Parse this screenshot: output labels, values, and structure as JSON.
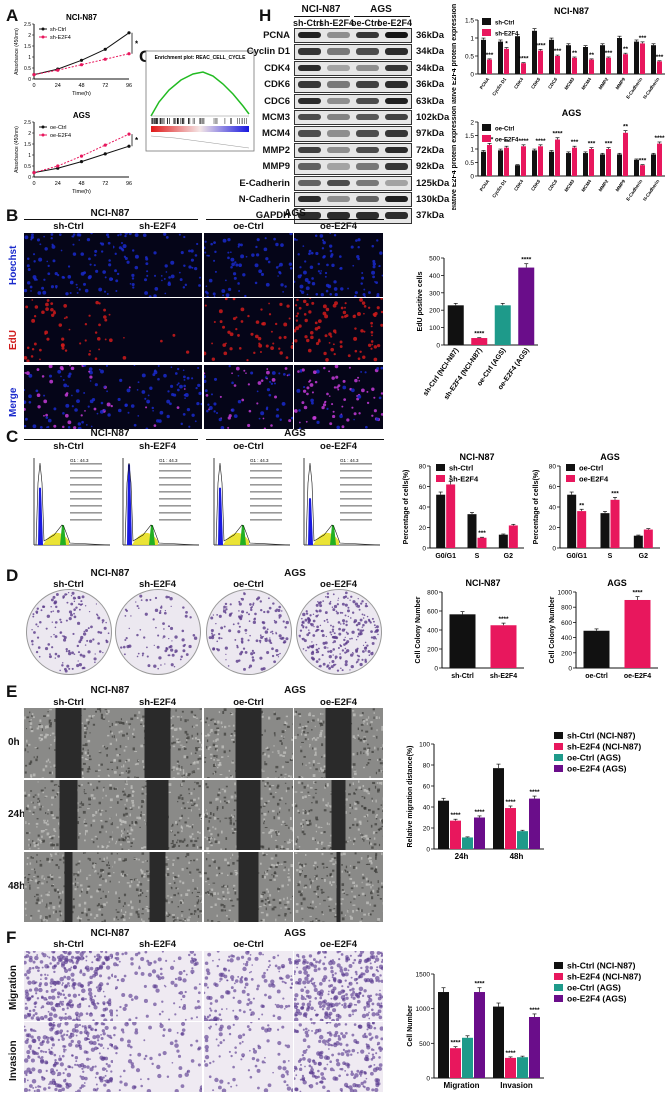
{
  "panels": {
    "A": "A",
    "B": "B",
    "C": "C",
    "D": "D",
    "E": "E",
    "F": "F",
    "G": "G",
    "H": "H"
  },
  "colors": {
    "black": "#111111",
    "pink": "#e8175d",
    "teal": "#1e9a8a",
    "purple": "#6a0d8a",
    "blue": "#1a2acc",
    "red": "#d01b1b",
    "magenta": "#c43bd8"
  },
  "groups": {
    "nci": "NCI-N87",
    "ags": "AGS",
    "sh_ctrl": "sh-Ctrl",
    "sh_e2f4": "sh-E2F4",
    "oe_ctrl": "oe-Ctrl",
    "oe_e2f4": "oe-E2F4"
  },
  "panelA": {
    "top": {
      "title": "NCI-N87",
      "legend": [
        "sh-Ctrl",
        "sh-E2F4"
      ],
      "ylabel": "Absorbance (450nm)",
      "xlabel": "Time(h)",
      "sig": "****"
    },
    "bottom": {
      "title": "AGS",
      "legend": [
        "oe-Ctrl",
        "oe-E2F4"
      ],
      "ylabel": "Absorbance (450nm)",
      "xlabel": "Time(h)",
      "sig": "****"
    },
    "chart_data": [
      {
        "type": "line",
        "title": "NCI-N87",
        "x": [
          0,
          24,
          48,
          72,
          96
        ],
        "xlabel": "Time(h)",
        "ylabel": "Absorbance (450nm)",
        "ylim": [
          0,
          2.5
        ],
        "series": [
          {
            "name": "sh-Ctrl",
            "values": [
              0.2,
              0.45,
              0.85,
              1.35,
              2.1
            ]
          },
          {
            "name": "sh-E2F4",
            "values": [
              0.2,
              0.4,
              0.65,
              0.9,
              1.15
            ]
          }
        ]
      },
      {
        "type": "line",
        "title": "AGS",
        "x": [
          0,
          24,
          48,
          72,
          96
        ],
        "xlabel": "Time(h)",
        "ylabel": "Absorbance (450nm)",
        "ylim": [
          0,
          2.5
        ],
        "series": [
          {
            "name": "oe-Ctrl",
            "values": [
              0.2,
              0.4,
              0.7,
              1.05,
              1.4
            ]
          },
          {
            "name": "oe-E2F4",
            "values": [
              0.2,
              0.5,
              0.95,
              1.45,
              1.95
            ]
          }
        ]
      }
    ]
  },
  "panelG": {
    "title": "Enrichment plot: REAC_CELL_CYCLE"
  },
  "panelH": {
    "proteins": [
      "PCNA",
      "Cyclin D1",
      "CDK4",
      "CDK6",
      "CDC6",
      "MCM3",
      "MCM4",
      "MMP2",
      "MMP9",
      "E-Cadherin",
      "N-Cadherin",
      "GAPDH"
    ],
    "kda": [
      "36kDa",
      "34kDa",
      "34kDa",
      "36kDa",
      "63kDa",
      "102kDa",
      "97kDa",
      "72kDa",
      "92kDa",
      "125kDa",
      "130kDa",
      "37kDa"
    ],
    "lanes": [
      "sh-Ctrl",
      "sh-E2F4",
      "oe-Ctrl",
      "oe-E2F4"
    ],
    "chart_data": [
      {
        "type": "bar",
        "title": "NCI-N87",
        "ylabel": "The relative E2F4 protein expression to GAPDH",
        "ylim": [
          0,
          1.5
        ],
        "categories": [
          "PCNA",
          "Cyclin D1",
          "CDK4",
          "CDK6",
          "CDC6",
          "MCM3",
          "MCM4",
          "MMP2",
          "MMP9",
          "E-Cadherin",
          "N-Cadherin"
        ],
        "series": [
          {
            "name": "sh-Ctrl",
            "values": [
              0.95,
              0.9,
              1.05,
              1.2,
              0.95,
              0.8,
              0.75,
              0.8,
              1.0,
              0.9,
              0.8
            ]
          },
          {
            "name": "sh-E2F4",
            "values": [
              0.4,
              0.7,
              0.3,
              0.65,
              0.5,
              0.45,
              0.4,
              0.45,
              0.55,
              0.85,
              0.35
            ]
          }
        ],
        "sig": [
          "***",
          "*",
          "****",
          "****",
          "***",
          "**",
          "**",
          "***",
          "**",
          "***",
          "***"
        ]
      },
      {
        "type": "bar",
        "title": "AGS",
        "ylabel": "The relative E2F4 protein expression to GAPDH",
        "ylim": [
          0,
          2.0
        ],
        "categories": [
          "PCNA",
          "Cyclin D1",
          "CDK4",
          "CDK6",
          "CDC6",
          "MCM3",
          "MCM4",
          "MMP2",
          "MMP9",
          "E-Cadherin",
          "N-Cadherin"
        ],
        "series": [
          {
            "name": "oe-Ctrl",
            "values": [
              0.9,
              0.95,
              0.4,
              0.95,
              0.9,
              0.85,
              0.85,
              0.8,
              0.8,
              0.6,
              0.8
            ]
          },
          {
            "name": "oe-E2F4",
            "values": [
              1.15,
              1.05,
              1.1,
              1.1,
              1.35,
              1.05,
              1.0,
              1.0,
              1.6,
              0.4,
              1.2
            ]
          }
        ],
        "sig": [
          "***",
          "**",
          "****",
          "****",
          "****",
          "***",
          "***",
          "***",
          "**",
          "***",
          "****"
        ]
      }
    ]
  },
  "panelB": {
    "rows": [
      "Hoechst",
      "EdU",
      "Merge"
    ],
    "chart_data": {
      "type": "bar",
      "ylabel": "EdU positive cells",
      "ylim": [
        0,
        500
      ],
      "categories": [
        "sh-Ctrl (NCI-N87)",
        "sh-E2F4 (NCI-N87)",
        "oe-Ctrl (AGS)",
        "oe-E2F4 (AGS)"
      ],
      "values": [
        228,
        40,
        228,
        445
      ],
      "sig": [
        "",
        "****",
        "",
        "****"
      ]
    }
  },
  "panelC": {
    "flow_text": "G1 : 44.3",
    "chart_data": [
      {
        "type": "bar",
        "title": "NCI-N87",
        "ylabel": "Percentage of cells(%)",
        "ylim": [
          0,
          80
        ],
        "categories": [
          "G0/G1",
          "S",
          "G2"
        ],
        "series": [
          {
            "name": "sh-Ctrl",
            "values": [
              52,
              33,
              13
            ]
          },
          {
            "name": "sh-E2F4",
            "values": [
              62,
              10,
              22
            ]
          }
        ],
        "sig": [
          "*",
          "***",
          ""
        ]
      },
      {
        "type": "bar",
        "title": "AGS",
        "ylabel": "Percentage of cells(%)",
        "ylim": [
          0,
          80
        ],
        "categories": [
          "G0/G1",
          "S",
          "G2"
        ],
        "series": [
          {
            "name": "oe-Ctrl",
            "values": [
              52,
              34,
              12
            ]
          },
          {
            "name": "oe-E2F4",
            "values": [
              36,
              47,
              18
            ]
          }
        ],
        "sig": [
          "**",
          "***",
          ""
        ]
      }
    ]
  },
  "panelD": {
    "chart_data": [
      {
        "type": "bar",
        "title": "NCI-N87",
        "ylabel": "Cell Colony Number",
        "ylim": [
          0,
          800
        ],
        "categories": [
          "sh-Ctrl",
          "sh-E2F4"
        ],
        "values": [
          565,
          450
        ],
        "sig": [
          "",
          "****"
        ]
      },
      {
        "type": "bar",
        "title": "AGS",
        "ylabel": "Cell Colony Number",
        "ylim": [
          0,
          1000
        ],
        "categories": [
          "oe-Ctrl",
          "oe-E2F4"
        ],
        "values": [
          490,
          895
        ],
        "sig": [
          "",
          "****"
        ]
      }
    ]
  },
  "panelE": {
    "rows": [
      "0h",
      "24h",
      "48h"
    ],
    "chart_data": {
      "type": "bar",
      "ylabel": "Relative migration distance(%)",
      "ylim": [
        0,
        100
      ],
      "categories": [
        "24h",
        "48h"
      ],
      "series": [
        {
          "name": "sh-Ctrl (NCI-N87)",
          "values": [
            46,
            77
          ]
        },
        {
          "name": "sh-E2F4 (NCI-N87)",
          "values": [
            27,
            39
          ]
        },
        {
          "name": "oe-Ctrl (AGS)",
          "values": [
            11,
            17
          ]
        },
        {
          "name": "oe-E2F4 (AGS)",
          "values": [
            30,
            48
          ]
        }
      ],
      "sig": [
        [
          "",
          "****",
          "",
          "****"
        ],
        [
          "",
          "****",
          "",
          "****"
        ]
      ]
    }
  },
  "panelF": {
    "rows": [
      "Migration",
      "Invasion"
    ],
    "chart_data": {
      "type": "bar",
      "ylabel": "Cell Number",
      "ylim": [
        0,
        1500
      ],
      "categories": [
        "Migration",
        "Invasion"
      ],
      "series": [
        {
          "name": "sh-Ctrl (NCI-N87)",
          "values": [
            1240,
            1030
          ]
        },
        {
          "name": "sh-E2F4 (NCI-N87)",
          "values": [
            430,
            290
          ]
        },
        {
          "name": "oe-Ctrl (AGS)",
          "values": [
            580,
            300
          ]
        },
        {
          "name": "oe-E2F4 (AGS)",
          "values": [
            1240,
            880
          ]
        }
      ],
      "sig": [
        [
          "",
          "****",
          "",
          "****"
        ],
        [
          "",
          "****",
          "",
          "****"
        ]
      ]
    }
  }
}
